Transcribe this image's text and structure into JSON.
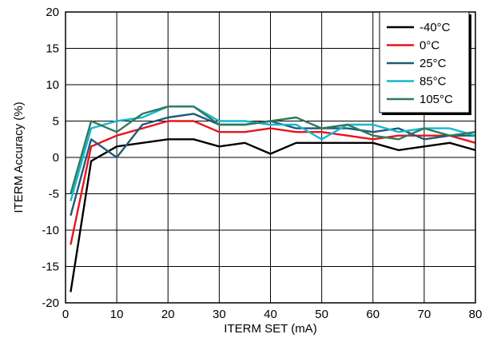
{
  "chart_data": {
    "type": "line",
    "title": "",
    "xlabel": "ITERM SET (mA)",
    "ylabel": "ITERM Accuracy (%)",
    "xlim": [
      0,
      80
    ],
    "ylim": [
      -20,
      20
    ],
    "xticks": [
      0,
      10,
      20,
      30,
      40,
      50,
      60,
      70,
      80
    ],
    "yticks": [
      -20,
      -15,
      -10,
      -5,
      0,
      5,
      10,
      15,
      20
    ],
    "grid": true,
    "legend_position": "top-right",
    "series": [
      {
        "name": "-40°C",
        "color": "#000000",
        "x": [
          1,
          5,
          10,
          15,
          20,
          25,
          30,
          35,
          40,
          45,
          50,
          55,
          60,
          65,
          70,
          75,
          80
        ],
        "y": [
          -18.5,
          -0.5,
          1.5,
          2,
          2.5,
          2.5,
          1.5,
          2,
          0.5,
          2,
          2,
          2,
          2,
          1,
          1.5,
          2,
          1
        ]
      },
      {
        "name": "0°C",
        "color": "#e8141b",
        "x": [
          1,
          5,
          10,
          15,
          20,
          25,
          30,
          35,
          40,
          45,
          50,
          55,
          60,
          65,
          70,
          75,
          80
        ],
        "y": [
          -12,
          1.5,
          3,
          4,
          5,
          5,
          3.5,
          3.5,
          4,
          3.5,
          3.5,
          3,
          2.5,
          3,
          3,
          3,
          2
        ]
      },
      {
        "name": "25°C",
        "color": "#1f5a78",
        "x": [
          1,
          5,
          10,
          15,
          20,
          25,
          30,
          35,
          40,
          45,
          50,
          55,
          60,
          65,
          70,
          75,
          80
        ],
        "y": [
          -8,
          2.5,
          0,
          4.5,
          5.5,
          6,
          4.5,
          4.5,
          5,
          4,
          4,
          4,
          3.5,
          4,
          2.5,
          3,
          3
        ]
      },
      {
        "name": "85°C",
        "color": "#17b7cf",
        "x": [
          1,
          5,
          10,
          15,
          20,
          25,
          30,
          35,
          40,
          45,
          50,
          55,
          60,
          65,
          70,
          75,
          80
        ],
        "y": [
          -6,
          4,
          5,
          5.5,
          7,
          7,
          5,
          5,
          4.5,
          4.5,
          2.5,
          4.5,
          4.5,
          3.5,
          4,
          4,
          3
        ]
      },
      {
        "name": "105°C",
        "color": "#2e7a5c",
        "x": [
          1,
          5,
          10,
          15,
          20,
          25,
          30,
          35,
          40,
          45,
          50,
          55,
          60,
          65,
          70,
          75,
          80
        ],
        "y": [
          -5,
          5,
          3.5,
          6,
          7,
          7,
          4.5,
          4.5,
          5,
          5.5,
          4,
          4.5,
          3,
          2.5,
          4,
          3,
          3.5
        ]
      }
    ]
  }
}
